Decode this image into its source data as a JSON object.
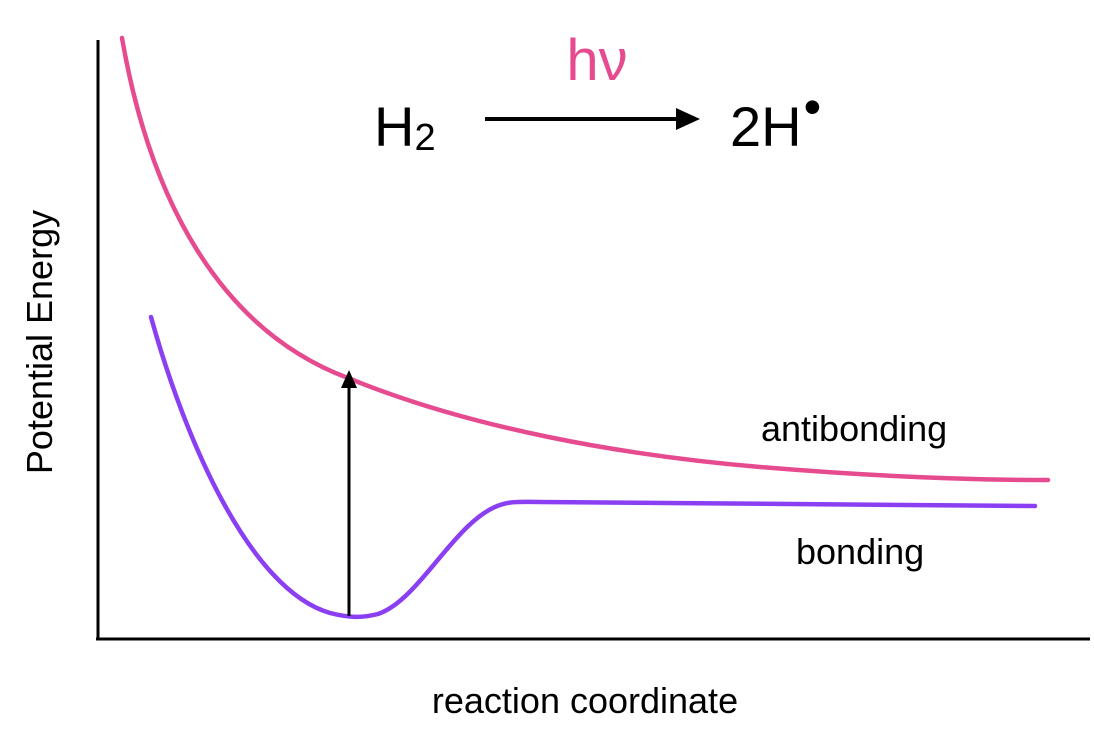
{
  "reaction": {
    "photon_label": "hν",
    "reactant": "H",
    "reactant_subscript": "2",
    "product": "2H",
    "product_dot": "•"
  },
  "axes": {
    "y_label": "Potential Energy",
    "x_label": "reaction coordinate"
  },
  "curves": {
    "antibonding_label": "antibonding",
    "bonding_label": "bonding"
  },
  "colors": {
    "antibonding": "#e64b90",
    "bonding": "#8a3ff2",
    "axis": "#000000",
    "photon": "#e64b90"
  }
}
